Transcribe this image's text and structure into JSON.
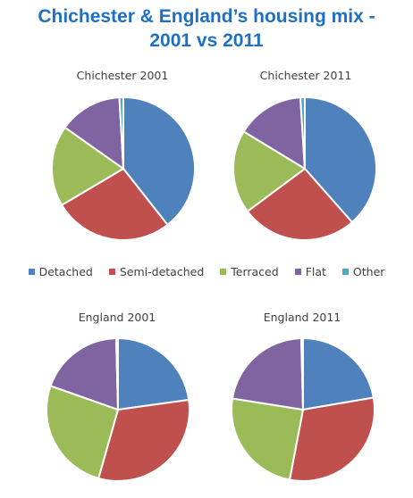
{
  "title_line1": "Chichester & England’s housing mix -",
  "title_line2": "2001 vs 2011",
  "categories": [
    "Detached",
    "Semi-detached",
    "Terraced",
    "Flat",
    "Other"
  ],
  "colors": [
    "#4F81BD",
    "#C0504D",
    "#9BBB59",
    "#8064A2",
    "#4BACC6"
  ],
  "chart_data": [
    {
      "type": "pie",
      "title": "Chichester 2001",
      "categories": [
        "Detached",
        "Semi-detached",
        "Terraced",
        "Flat",
        "Other"
      ],
      "values": [
        39.4,
        27.1,
        18.3,
        14.3,
        0.9
      ]
    },
    {
      "type": "pie",
      "title": "Chichester 2011",
      "categories": [
        "Detached",
        "Semi-detached",
        "Terraced",
        "Flat",
        "Other"
      ],
      "values": [
        38.5,
        26.3,
        18.9,
        15.3,
        1.0
      ]
    },
    {
      "type": "pie",
      "title": "England 2001",
      "categories": [
        "Detached",
        "Semi-detached",
        "Terraced",
        "Flat",
        "Other"
      ],
      "values": [
        22.8,
        31.6,
        26.0,
        19.2,
        0.4
      ]
    },
    {
      "type": "pie",
      "title": "England 2011",
      "categories": [
        "Detached",
        "Semi-detached",
        "Terraced",
        "Flat",
        "Other"
      ],
      "values": [
        22.3,
        30.7,
        24.5,
        22.1,
        0.4
      ]
    }
  ],
  "legend_position": "middle"
}
